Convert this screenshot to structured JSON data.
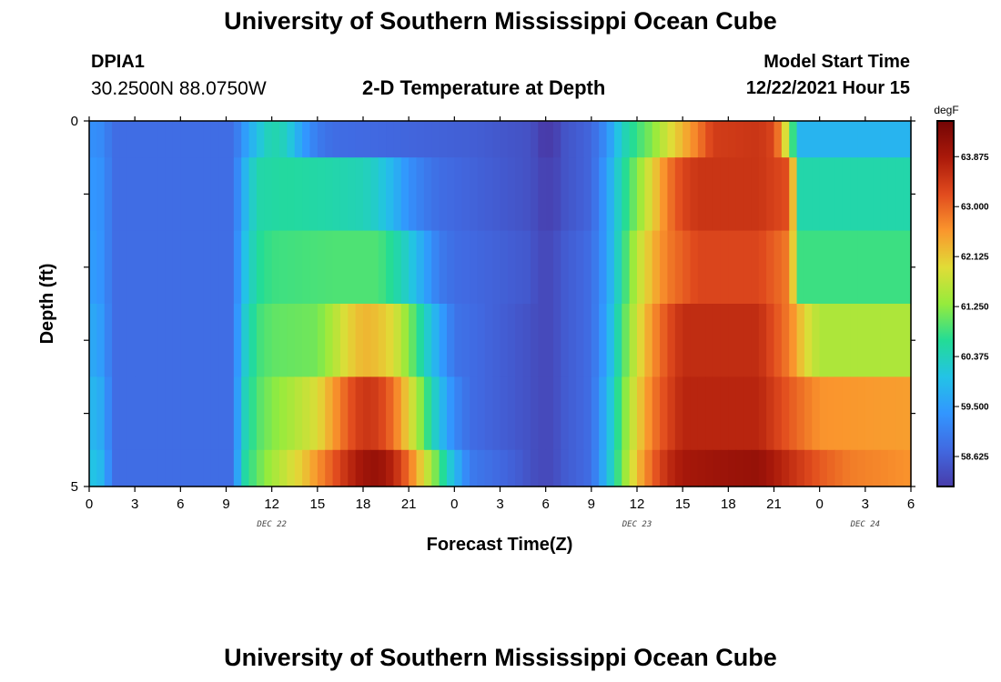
{
  "header": {
    "title_top": "University of Southern Mississippi Ocean Cube",
    "title_bottom": "University of Southern Mississippi Ocean Cube",
    "station_id": "DPIA1",
    "coords": "30.2500N  88.0750W",
    "subtitle": "2-D Temperature at Depth",
    "model_start_label": "Model Start Time",
    "model_start_value": "12/22/2021 Hour 15"
  },
  "chart_data": {
    "type": "heatmap",
    "title": "2-D Temperature at Depth",
    "xlabel": "Forecast Time(Z)",
    "ylabel": "Depth (ft)",
    "y_tick_labels": [
      "0",
      "5"
    ],
    "y_range": [
      0,
      5
    ],
    "x_range_hours": [
      0,
      54
    ],
    "x_tick_labels": [
      "0",
      "3",
      "6",
      "9",
      "12",
      "15",
      "18",
      "21",
      "0",
      "3",
      "6",
      "9",
      "12",
      "15",
      "18",
      "21",
      "0",
      "3",
      "6"
    ],
    "date_labels": [
      {
        "text": "DEC 22",
        "hour": 12
      },
      {
        "text": "DEC 23",
        "hour": 36
      },
      {
        "text": "DEC 24",
        "hour": 51
      }
    ],
    "colorbar": {
      "unit": "degF",
      "min": 58.1,
      "max": 64.5,
      "tick_labels": [
        "58.625",
        "59.500",
        "60.375",
        "61.250",
        "62.125",
        "63.000",
        "63.875"
      ],
      "tick_values": [
        58.625,
        59.5,
        60.375,
        61.25,
        62.125,
        63.0,
        63.875
      ]
    },
    "depth_layers": [
      0.5,
      1.5,
      2.5,
      3.5,
      4.5,
      5.0
    ],
    "time_step_hours": 0.5,
    "layers_keyframes": [
      [
        [
          0,
          59.3
        ],
        [
          1,
          59.2
        ],
        [
          1.5,
          58.8
        ],
        [
          9.5,
          58.8
        ],
        [
          10,
          59.3
        ],
        [
          11,
          60.0
        ],
        [
          12,
          60.5
        ],
        [
          13,
          60.3
        ],
        [
          14,
          59.5
        ],
        [
          15,
          59.0
        ],
        [
          16,
          58.8
        ],
        [
          25,
          58.6
        ],
        [
          29,
          58.4
        ],
        [
          29.8,
          58.1
        ],
        [
          30.6,
          58.1
        ],
        [
          31,
          58.4
        ],
        [
          33,
          58.7
        ],
        [
          34,
          59.3
        ],
        [
          35,
          60.3
        ],
        [
          36,
          60.8
        ],
        [
          37,
          61.2
        ],
        [
          38,
          61.8
        ],
        [
          39,
          62.3
        ],
        [
          40,
          62.8
        ],
        [
          41,
          63.4
        ],
        [
          44,
          63.5
        ],
        [
          45,
          63.3
        ],
        [
          45.5,
          62.5
        ],
        [
          46,
          61.3
        ],
        [
          46.7,
          59.8
        ],
        [
          54,
          59.8
        ]
      ],
      [
        [
          0,
          59.4
        ],
        [
          1,
          59.3
        ],
        [
          1.5,
          58.8
        ],
        [
          9.5,
          58.8
        ],
        [
          10,
          59.6
        ],
        [
          11,
          60.5
        ],
        [
          13,
          60.6
        ],
        [
          16,
          60.5
        ],
        [
          18,
          60.4
        ],
        [
          19,
          60.2
        ],
        [
          20,
          59.8
        ],
        [
          21,
          59.3
        ],
        [
          22,
          59.0
        ],
        [
          23,
          58.8
        ],
        [
          29,
          58.4
        ],
        [
          29.8,
          58.2
        ],
        [
          30.6,
          58.2
        ],
        [
          31,
          58.4
        ],
        [
          33,
          58.7
        ],
        [
          34,
          59.5
        ],
        [
          35,
          60.5
        ],
        [
          36,
          61.2
        ],
        [
          37,
          62.0
        ],
        [
          38,
          62.8
        ],
        [
          39,
          63.3
        ],
        [
          40,
          63.5
        ],
        [
          44,
          63.5
        ],
        [
          46,
          63.2
        ],
        [
          46.7,
          60.5
        ],
        [
          54,
          60.5
        ]
      ],
      [
        [
          0,
          59.5
        ],
        [
          1,
          59.3
        ],
        [
          1.5,
          58.8
        ],
        [
          9.5,
          58.8
        ],
        [
          10,
          59.8
        ],
        [
          11,
          60.6
        ],
        [
          12,
          60.8
        ],
        [
          16,
          60.9
        ],
        [
          19,
          60.9
        ],
        [
          20,
          60.6
        ],
        [
          21,
          60.2
        ],
        [
          22,
          59.6
        ],
        [
          23,
          59.0
        ],
        [
          24,
          58.8
        ],
        [
          29,
          58.5
        ],
        [
          29.5,
          58.3
        ],
        [
          30.5,
          58.3
        ],
        [
          31,
          58.5
        ],
        [
          33,
          58.8
        ],
        [
          34,
          59.5
        ],
        [
          35,
          60.6
        ],
        [
          36,
          61.6
        ],
        [
          37,
          62.3
        ],
        [
          38,
          62.8
        ],
        [
          40,
          63.3
        ],
        [
          44,
          63.3
        ],
        [
          46,
          62.8
        ],
        [
          46.7,
          60.8
        ],
        [
          54,
          60.8
        ]
      ],
      [
        [
          0,
          59.7
        ],
        [
          1,
          59.4
        ],
        [
          1.5,
          58.8
        ],
        [
          9.5,
          58.8
        ],
        [
          10,
          60.0
        ],
        [
          11,
          60.8
        ],
        [
          12,
          61.0
        ],
        [
          15,
          61.1
        ],
        [
          16,
          61.5
        ],
        [
          17,
          62.0
        ],
        [
          18,
          62.3
        ],
        [
          19,
          62.2
        ],
        [
          20,
          61.9
        ],
        [
          21,
          61.2
        ],
        [
          22,
          60.4
        ],
        [
          23,
          59.6
        ],
        [
          24,
          58.9
        ],
        [
          28,
          58.5
        ],
        [
          29,
          58.4
        ],
        [
          29.5,
          58.3
        ],
        [
          30.5,
          58.3
        ],
        [
          31,
          58.5
        ],
        [
          33,
          58.8
        ],
        [
          34,
          59.6
        ],
        [
          35,
          60.8
        ],
        [
          36,
          61.8
        ],
        [
          37,
          62.6
        ],
        [
          38,
          63.2
        ],
        [
          39,
          63.6
        ],
        [
          44,
          63.6
        ],
        [
          46,
          62.8
        ],
        [
          47,
          62.0
        ],
        [
          48,
          61.5
        ],
        [
          54,
          61.5
        ]
      ],
      [
        [
          0,
          59.9
        ],
        [
          1,
          59.6
        ],
        [
          1.5,
          58.8
        ],
        [
          9.5,
          58.8
        ],
        [
          10,
          60.2
        ],
        [
          11,
          60.9
        ],
        [
          12,
          61.2
        ],
        [
          13,
          61.4
        ],
        [
          15,
          61.9
        ],
        [
          16,
          62.5
        ],
        [
          17,
          63.1
        ],
        [
          18,
          63.5
        ],
        [
          19,
          63.4
        ],
        [
          20,
          62.9
        ],
        [
          21,
          62.0
        ],
        [
          22,
          61.0
        ],
        [
          23,
          60.0
        ],
        [
          24,
          59.2
        ],
        [
          25,
          58.8
        ],
        [
          28,
          58.5
        ],
        [
          29,
          58.4
        ],
        [
          29.5,
          58.3
        ],
        [
          30.5,
          58.3
        ],
        [
          31,
          58.5
        ],
        [
          33,
          58.8
        ],
        [
          34,
          59.8
        ],
        [
          35,
          61.0
        ],
        [
          36,
          62.0
        ],
        [
          37,
          62.8
        ],
        [
          38,
          63.3
        ],
        [
          39,
          63.7
        ],
        [
          44,
          63.7
        ],
        [
          46,
          63.1
        ],
        [
          48,
          62.6
        ],
        [
          54,
          62.5
        ]
      ],
      [
        [
          0,
          60.1
        ],
        [
          1,
          59.8
        ],
        [
          1.5,
          58.8
        ],
        [
          9.5,
          58.8
        ],
        [
          10,
          60.4
        ],
        [
          11,
          61.0
        ],
        [
          12,
          61.4
        ],
        [
          14,
          62.1
        ],
        [
          15,
          62.6
        ],
        [
          16,
          63.1
        ],
        [
          17,
          63.6
        ],
        [
          18,
          64.0
        ],
        [
          19,
          64.1
        ],
        [
          20,
          63.7
        ],
        [
          21,
          62.9
        ],
        [
          22,
          61.9
        ],
        [
          23,
          60.9
        ],
        [
          24,
          59.9
        ],
        [
          25,
          59.0
        ],
        [
          28,
          58.6
        ],
        [
          29,
          58.4
        ],
        [
          29.5,
          58.3
        ],
        [
          30.5,
          58.3
        ],
        [
          31,
          58.5
        ],
        [
          33,
          58.8
        ],
        [
          34,
          59.9
        ],
        [
          35,
          61.1
        ],
        [
          36,
          62.2
        ],
        [
          37,
          63.0
        ],
        [
          38,
          63.6
        ],
        [
          39,
          63.9
        ],
        [
          41,
          64.0
        ],
        [
          44,
          64.1
        ],
        [
          46,
          63.6
        ],
        [
          48,
          63.1
        ],
        [
          50,
          62.8
        ],
        [
          54,
          62.6
        ]
      ]
    ]
  }
}
